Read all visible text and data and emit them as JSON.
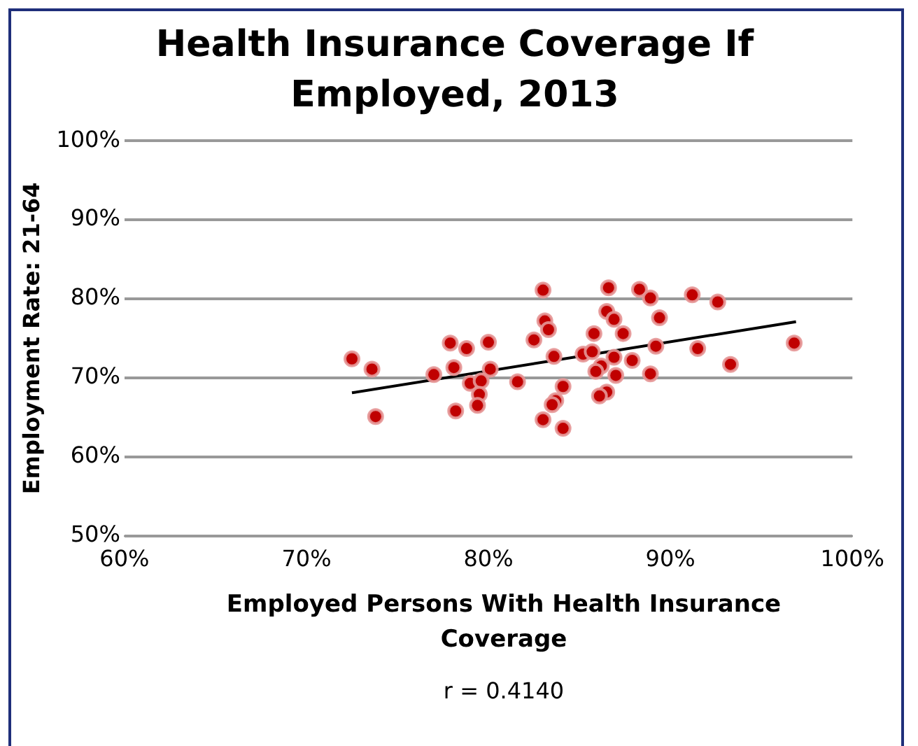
{
  "chart_data": {
    "type": "scatter",
    "title": "Health Insurance Coverage If Employed, 2013",
    "xlabel": "Employed Persons With Health Insurance Coverage",
    "ylabel": "Employment Rate: 21-64",
    "annotations": [
      "r = 0.4140"
    ],
    "xlim": [
      60,
      100
    ],
    "xticks": [
      {
        "value": 60,
        "label": "60%"
      },
      {
        "value": 70,
        "label": "70%"
      },
      {
        "value": 80,
        "label": "80%"
      },
      {
        "value": 90,
        "label": "90%"
      },
      {
        "value": 100,
        "label": "100%"
      }
    ],
    "ylim": [
      50,
      100
    ],
    "yticks": [
      {
        "value": 50,
        "label": "50%"
      },
      {
        "value": 60,
        "label": "60%"
      },
      {
        "value": 70,
        "label": "70%"
      },
      {
        "value": 80,
        "label": "80%"
      },
      {
        "value": 90,
        "label": "90%"
      },
      {
        "value": 100,
        "label": "100%"
      }
    ],
    "grid": "y",
    "legend": false,
    "marker": "circle",
    "series": [
      {
        "type": "scatter",
        "color": "#c00000",
        "x": [
          72.5,
          73.6,
          73.8,
          77.0,
          77.9,
          78.8,
          80.0,
          78.1,
          80.1,
          79.0,
          79.6,
          79.5,
          79.4,
          78.2,
          81.6,
          82.5,
          83.0,
          83.1,
          83.3,
          83.6,
          84.1,
          83.7,
          83.5,
          83.0,
          84.1,
          85.2,
          85.8,
          85.7,
          86.6,
          86.5,
          86.9,
          87.4,
          86.9,
          86.2,
          85.9,
          87.0,
          86.5,
          86.1,
          87.9,
          88.3,
          88.9,
          91.2,
          92.6,
          89.4,
          89.2,
          91.5,
          96.8,
          93.3,
          88.9
        ],
        "values": [
          72.4,
          71.1,
          65.1,
          70.4,
          74.4,
          73.7,
          74.5,
          71.3,
          71.1,
          69.3,
          69.6,
          67.9,
          66.5,
          65.8,
          69.5,
          74.8,
          81.1,
          77.2,
          76.1,
          72.7,
          68.9,
          67.1,
          66.6,
          64.7,
          63.6,
          73.0,
          75.6,
          73.3,
          81.4,
          78.4,
          77.4,
          75.6,
          72.6,
          71.5,
          70.8,
          70.3,
          68.2,
          67.7,
          72.2,
          81.2,
          80.1,
          80.5,
          79.6,
          77.6,
          74.0,
          73.7,
          74.4,
          71.7,
          70.5
        ]
      },
      {
        "type": "line",
        "color": "#000000",
        "marker": "none",
        "line_style": "solid",
        "x": [
          72.5,
          96.9
        ],
        "values": [
          68.1,
          77.1
        ]
      }
    ]
  }
}
